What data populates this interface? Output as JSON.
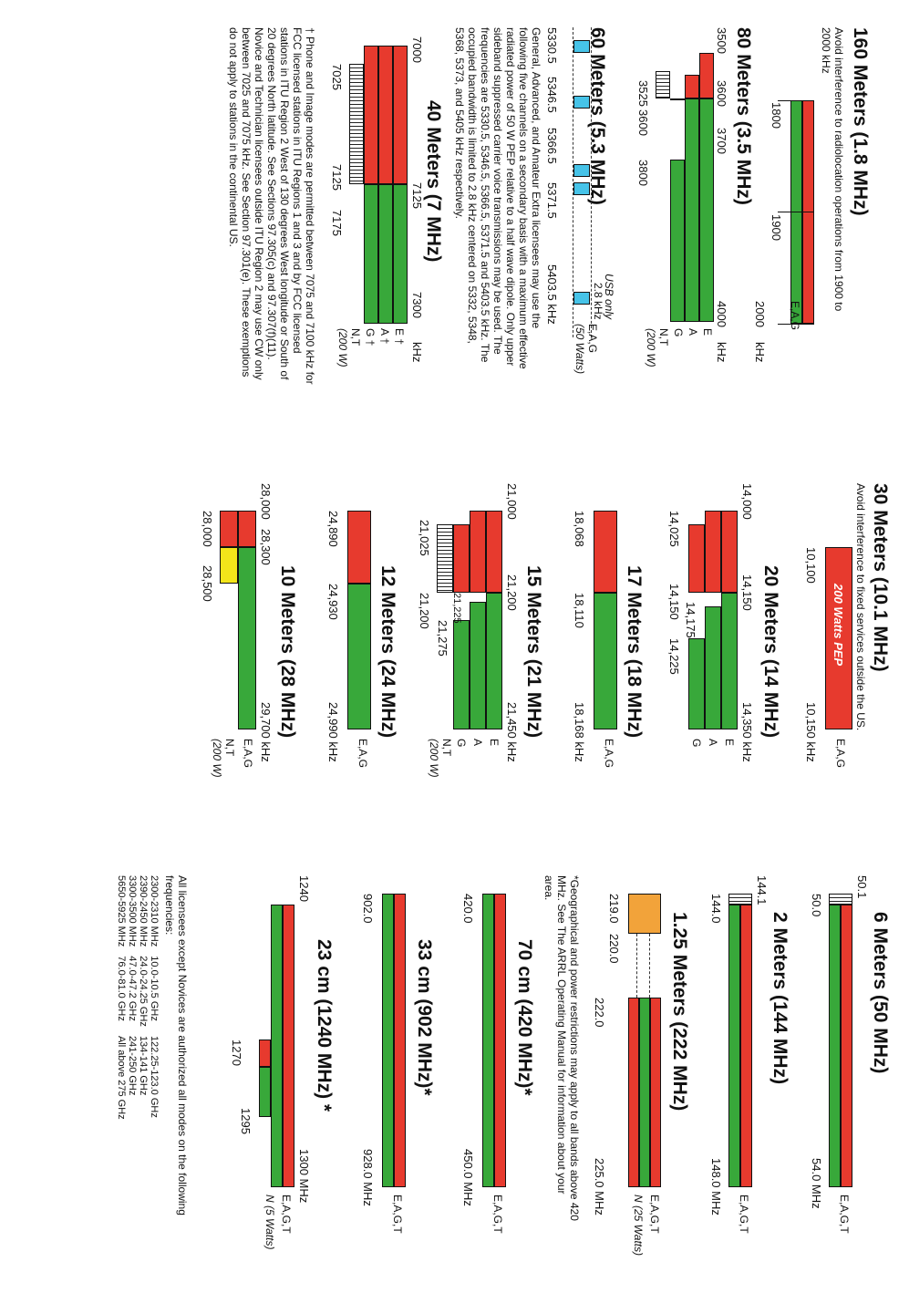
{
  "col1": {
    "b160": {
      "title": "160 Meters (1.8 MHz)",
      "note": "Avoid interference to radiolocation operations from 1900 to 2000 kHz",
      "f1": "1800",
      "f2": "1900",
      "f3": "2000",
      "unit": "kHz",
      "modes": "E,A,G"
    },
    "b80": {
      "title": "80 Meters (3.5 MHz)",
      "f_3500": "3500",
      "f_3600": "3600",
      "f_3700": "3700",
      "f_3525": "3525",
      "f_3600b": "3600",
      "f_3800": "3800",
      "f_4000": "4000",
      "unit": "kHz",
      "mE": "E",
      "mA": "A",
      "mG": "G",
      "mNT": "N,T",
      "mW": "(200 W)"
    },
    "b60": {
      "title": "60 Meters (5.3 MHz)",
      "usb": "USB only",
      "khz": "2.8 kHz",
      "modes": "E,A,G",
      "watts": "(50 Watts)",
      "f1": "5330.5",
      "f2": "5346.5",
      "f3": "5366.5",
      "f4": "5371.5",
      "f5": "5403.5 kHz",
      "text": "General, Advanced, and Amateur Extra licensees may use the following five channels on a secondary basis with a maximum effective radiated power of 50 W PEP relative to a half wave dipole. Only upper sideband suppressed carrier voice transmissions may be used. The frequencies are 5330.5, 5346.5, 5366.5, 5371.5 and 5403.5 kHz. The occupied bandwidth is limited to 2.8 kHz centered on 5332, 5348, 5368, 5373, and 5405 kHz respectively."
    },
    "b40": {
      "title": "40 Meters (7 MHz)",
      "f_7000": "7000",
      "f_7125": "7125",
      "f_7025": "7025",
      "f_7125b": "7125",
      "f_7175": "7175",
      "f_7300": "7300",
      "unit": "kHz",
      "mE": "E †",
      "mA": "A †",
      "mG": "G †",
      "mNT": "N,T",
      "mW": "(200 W)"
    },
    "footnote": "† Phone and Image modes are permitted between 7075 and 7100 kHz for FCC licensed stations in ITU Regions 1 and 3 and by FCC licensed stations in ITU Region 2 West of 130 degrees West longitude or South of 20 degrees North latitude. See Sections 97.305(c) and 97.307(f)(11). Novice and Technician licensees outside ITU Region 2 may use CW only between 7025 and 7075 kHz. See Section 97.301(e). These exemptions do not apply to stations in the continental US."
  },
  "col2": {
    "b30": {
      "title": "30 Meters (10.1 MHz)",
      "note": "Avoid interference to fixed services outside the US.",
      "pep": "200 Watts PEP",
      "f1": "10,100",
      "f2": "10,150 kHz",
      "modes": "E,A,G"
    },
    "b20": {
      "title": "20 Meters (14 MHz)",
      "f_14000": "14,000",
      "f_14150": "14,150",
      "f_14025": "14,025",
      "f_14150b": "14,150",
      "f_14175": "14,175",
      "f_14225": "14,225",
      "f_14350": "14,350 kHz",
      "mE": "E",
      "mA": "A",
      "mG": "G"
    },
    "b17": {
      "title": "17 Meters (18 MHz)",
      "f1": "18,068",
      "f2": "18,110",
      "f3": "18,168 kHz",
      "modes": "E,A,G"
    },
    "b15": {
      "title": "15 Meters (21 MHz)",
      "f_21000": "21,000",
      "f_21200": "21,200",
      "f_21025": "21,025",
      "f_21200b": "21,200",
      "f_21225": "21,225",
      "f_21275": "21,275",
      "f_21450": "21,450 kHz",
      "mE": "E",
      "mA": "A",
      "mG": "G",
      "mNT": "N,T",
      "mW": "(200 W)"
    },
    "b12": {
      "title": "12 Meters (24 MHz)",
      "f1": "24,890",
      "f2": "24,930",
      "f3": "24,990 kHz",
      "modes": "E,A,G"
    },
    "b10": {
      "title": "10 Meters (28 MHz)",
      "f_28000": "28,000",
      "f_28300": "28,300",
      "f_28000b": "28,000",
      "f_28500": "28,500",
      "f_29700": "29,700 kHz",
      "modes": "E,A,G",
      "mNT": "N,T",
      "mW": "(200 W)"
    }
  },
  "col3": {
    "b6": {
      "title": "6 Meters (50 MHz)",
      "f_top": "50.1",
      "f1": "50.0",
      "f2": "54.0 MHz",
      "modes": "E,A,G,T"
    },
    "b2": {
      "title": "2 Meters (144 MHz)",
      "f_top": "144.1",
      "f1": "144.0",
      "f2": "148.0 MHz",
      "modes": "E,A,G,T"
    },
    "b125": {
      "title": "1.25 Meters (222 MHz)",
      "f_219": "219.0",
      "f_220": "220.0",
      "f_222": "222.0",
      "f_225": "225.0  MHz",
      "modes": "E,A,G,T",
      "mN": "N (25 Watts)"
    },
    "geo": "*Geographical and power restrictions may apply to all bands above 420 MHz. See The ARRL Operating Manual for information about your area.",
    "b70": {
      "title": "70 cm (420 MHz)*",
      "f1": "420.0",
      "f2": "450.0  MHz",
      "modes": "E,A,G,T"
    },
    "b33": {
      "title": "33 cm (902 MHz)*",
      "f1": "902.0",
      "f2": "928.0  MHz",
      "modes": "E,A,G,T"
    },
    "b23": {
      "title": "23 cm (1240 MHz) *",
      "f_1240": "1240",
      "f_1300": "1300  MHz",
      "f_1270": "1270",
      "f_1295": "1295",
      "modes": "E,A,G,T",
      "mN": "N (5 Watts)"
    },
    "nov_intro": "All licensees except Novices are authorized all modes on the following frequencies:",
    "nov_rows": [
      [
        "2300-2310 MHz",
        "10.0-10.5 GHz",
        "122.25-123.0 GHz"
      ],
      [
        "2390-2450 MHz",
        "24.0-24.25 GHz",
        "134-141 GHz"
      ],
      [
        "3300-3500 MHz",
        "47.0-47.2 GHz",
        "241-250 GHz"
      ],
      [
        "5650-5925 MHz",
        "76.0-81.0 GHz",
        "All above 275 GHz"
      ]
    ]
  },
  "colors": {
    "extra": "#e73a2e",
    "general": "#38a83a",
    "novice_10m": "#f3e51a",
    "band_125": "#f2a33a",
    "channel_60": "#46c3e8"
  }
}
